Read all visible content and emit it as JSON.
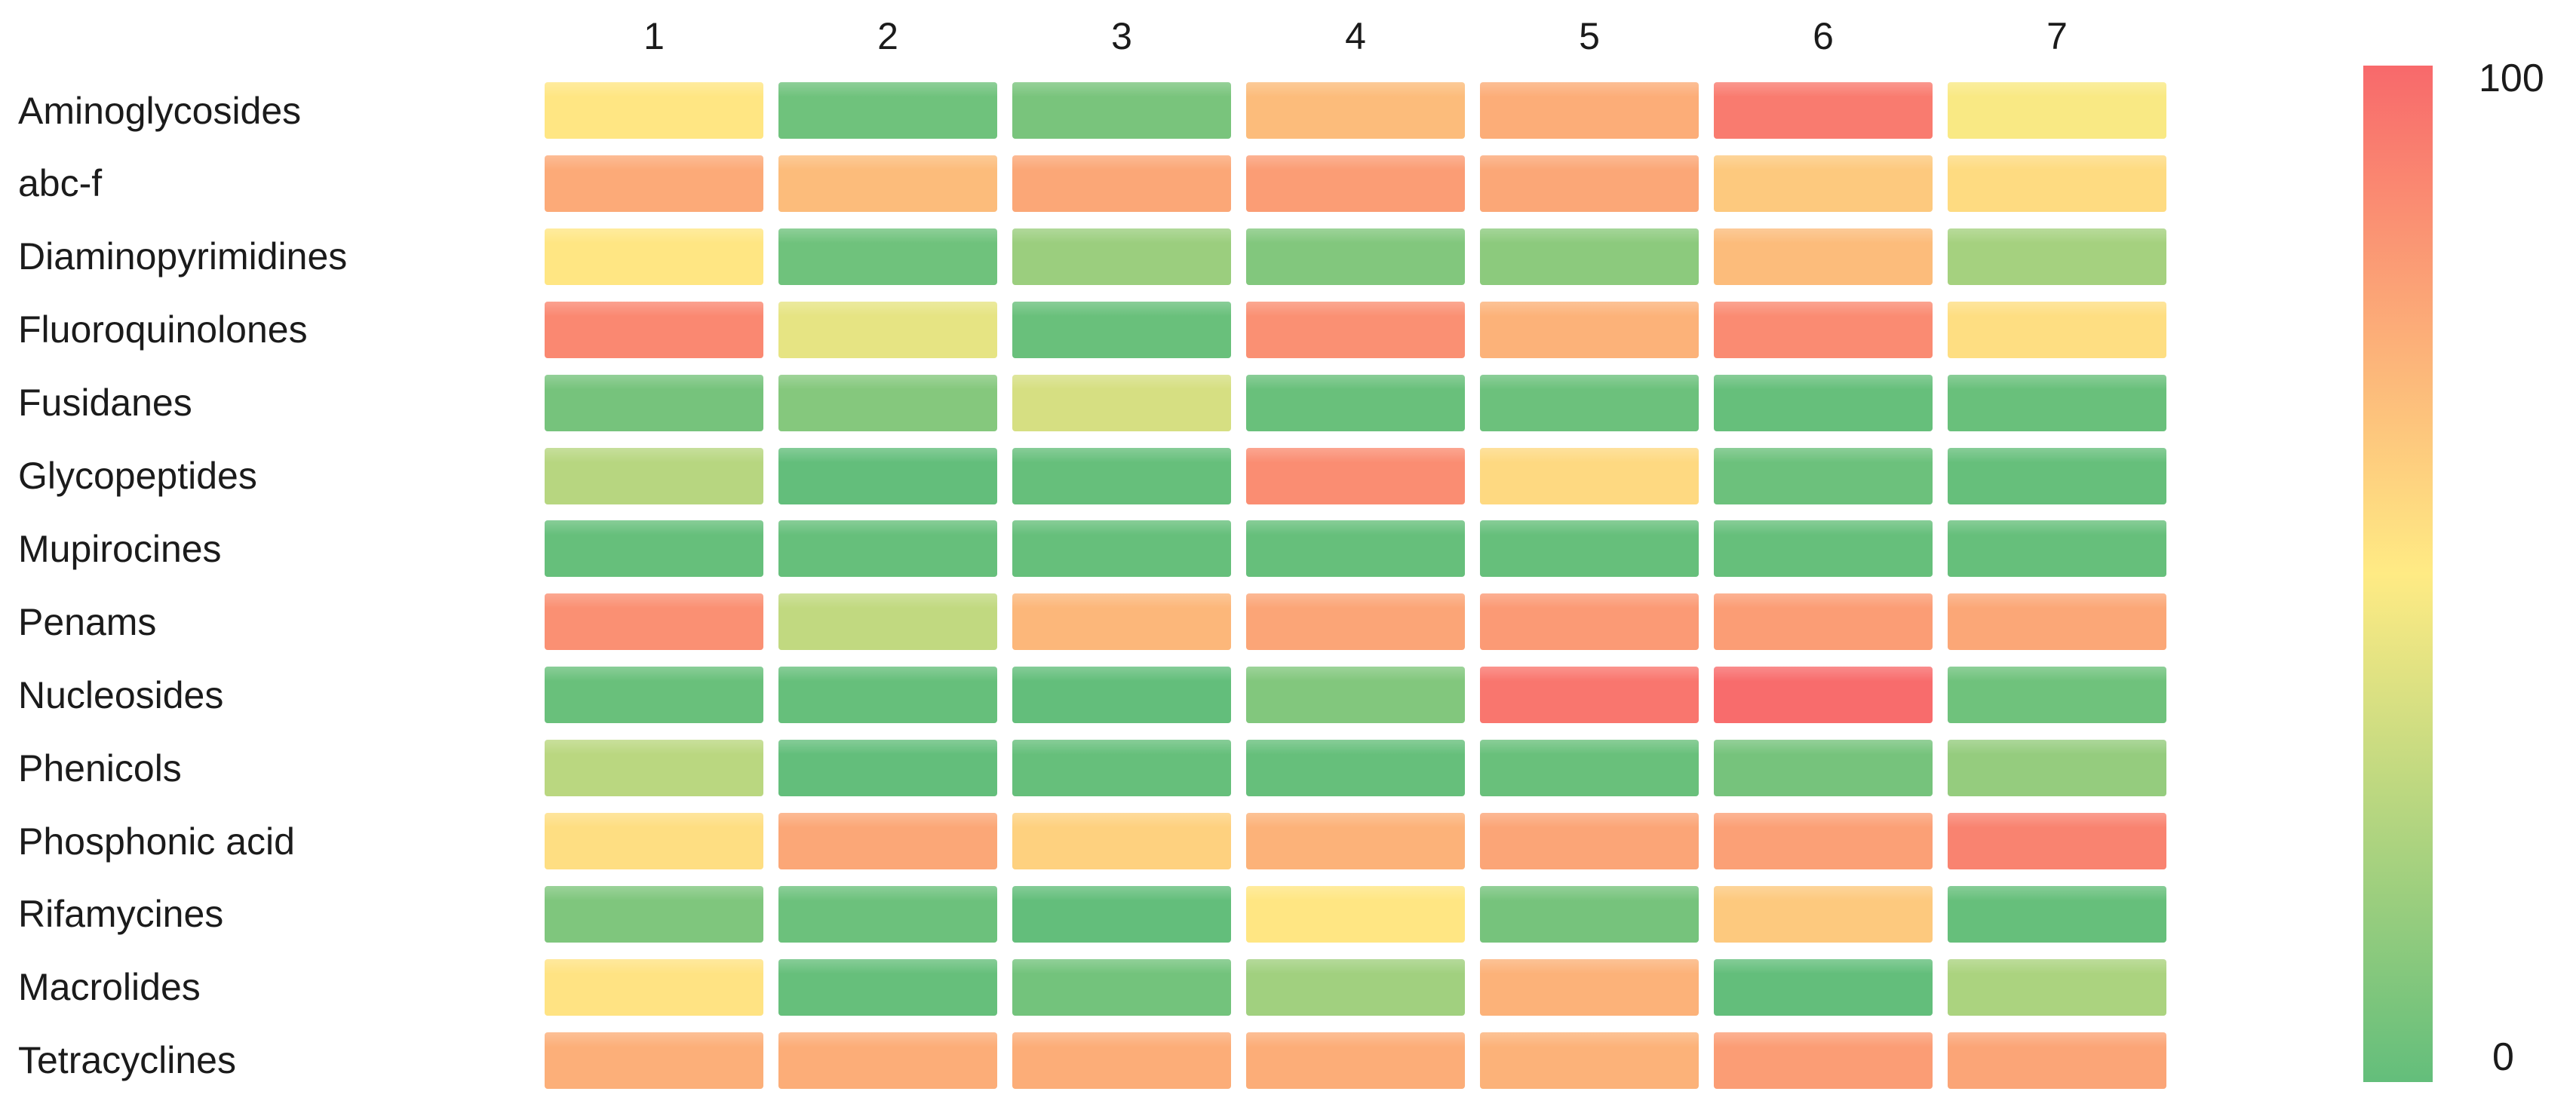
{
  "chart_data": {
    "type": "heatmap",
    "title": "",
    "columns": [
      "1",
      "2",
      "3",
      "4",
      "5",
      "6",
      "7"
    ],
    "rows": [
      {
        "label": "Aminoglycosides",
        "values": [
          52,
          4,
          7,
          68,
          74,
          93,
          48
        ]
      },
      {
        "label": "abc-f",
        "values": [
          75,
          68,
          76,
          80,
          76,
          63,
          56
        ]
      },
      {
        "label": "Diaminopyrimidines",
        "values": [
          52,
          4,
          18,
          10,
          13,
          68,
          21
        ]
      },
      {
        "label": "Fluoroquinolones",
        "values": [
          88,
          42,
          2,
          85,
          72,
          87,
          55
        ]
      },
      {
        "label": "Fusidanes",
        "values": [
          6,
          11,
          37,
          2,
          3,
          1,
          2
        ]
      },
      {
        "label": "Glycopeptides",
        "values": [
          27,
          0,
          1,
          86,
          57,
          3,
          1
        ]
      },
      {
        "label": "Mupirocines",
        "values": [
          1,
          1,
          1,
          1,
          1,
          1,
          1
        ]
      },
      {
        "label": "Penams",
        "values": [
          85,
          30,
          70,
          77,
          81,
          80,
          76
        ]
      },
      {
        "label": "Nucleosides",
        "values": [
          2,
          1,
          0,
          10,
          95,
          99,
          4
        ]
      },
      {
        "label": "Phenicols",
        "values": [
          28,
          0,
          1,
          1,
          2,
          6,
          16
        ]
      },
      {
        "label": "Phosphonic acid",
        "values": [
          55,
          76,
          60,
          72,
          77,
          79,
          90
        ]
      },
      {
        "label": "Rifamycines",
        "values": [
          9,
          3,
          0,
          52,
          6,
          63,
          1
        ]
      },
      {
        "label": "Macrolides",
        "values": [
          53,
          1,
          5,
          20,
          72,
          0,
          23
        ]
      },
      {
        "label": "Tetracyclines",
        "values": [
          73,
          74,
          74,
          74,
          72,
          80,
          77
        ]
      }
    ],
    "value_range": [
      0,
      100
    ],
    "legend": {
      "orientation": "vertical",
      "max_label": "100",
      "min_label": "0"
    },
    "colorscale": {
      "min_value": 0,
      "min_color": "#63BE7B",
      "mid_value": 50,
      "mid_color": "#FFEB84",
      "max_value": 100,
      "max_color": "#F8696B"
    },
    "text_color": "#1b1b1b",
    "background_color": "#ffffff",
    "grid": false,
    "legend_position": "right"
  }
}
